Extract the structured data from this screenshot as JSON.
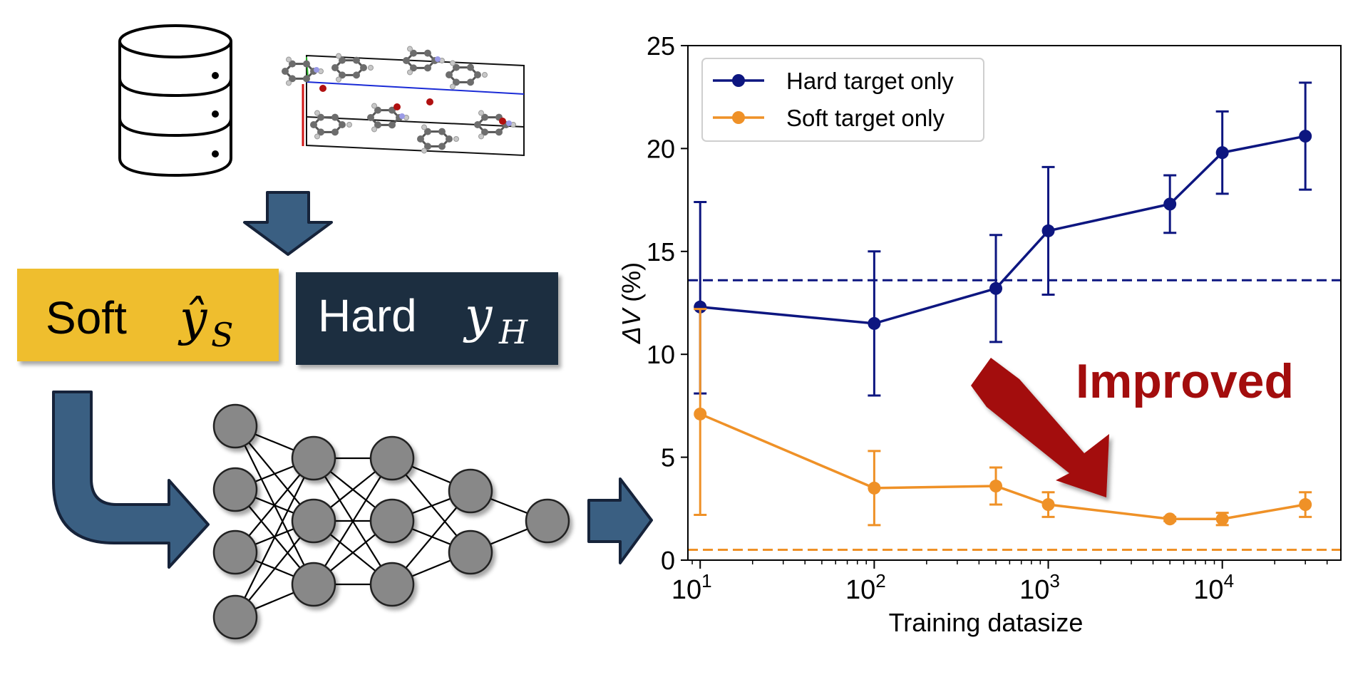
{
  "diagram": {
    "soft_box": {
      "word": "Soft",
      "symbol": "ŷ",
      "subscript": "S",
      "color": "#efbe2f"
    },
    "hard_box": {
      "word": "Hard",
      "symbol": "y",
      "subscript": "H",
      "color": "#1f2d40"
    },
    "arrow_color": "#3a5f82",
    "node_color": "#888888",
    "layers": [
      4,
      3,
      3,
      2,
      1
    ]
  },
  "chart_data": {
    "type": "line",
    "xscale": "log",
    "xlabel": "Training datasize",
    "ylabel_symbol": "ΔV",
    "ylabel_unit": "(%)",
    "xlim": [
      8.5,
      48000
    ],
    "ylim": [
      0,
      25
    ],
    "xticks": [
      {
        "value": 10,
        "base": "10",
        "exp": "1"
      },
      {
        "value": 100,
        "base": "10",
        "exp": "2"
      },
      {
        "value": 1000,
        "base": "10",
        "exp": "3"
      },
      {
        "value": 10000,
        "base": "10",
        "exp": "4"
      }
    ],
    "yticks": [
      "0",
      "5",
      "10",
      "15",
      "20",
      "25"
    ],
    "series": [
      {
        "name": "Hard target only",
        "color": "#0d1680",
        "x": [
          10,
          100,
          500,
          1000,
          5000,
          10000,
          30000
        ],
        "y": [
          12.3,
          11.5,
          13.2,
          16.0,
          17.3,
          19.8,
          20.6
        ],
        "err_low": [
          4.2,
          3.5,
          2.6,
          3.1,
          1.4,
          2.0,
          2.6
        ],
        "err_high": [
          5.1,
          3.5,
          2.6,
          3.1,
          1.4,
          2.0,
          2.6
        ],
        "baseline": 13.6
      },
      {
        "name": "Soft target only",
        "color": "#ef9127",
        "x": [
          10,
          100,
          500,
          1000,
          5000,
          10000,
          30000
        ],
        "y": [
          7.1,
          3.5,
          3.6,
          2.7,
          2.0,
          2.0,
          2.7
        ],
        "err_low": [
          4.9,
          1.8,
          0.9,
          0.6,
          0.1,
          0.3,
          0.6
        ],
        "err_high": [
          5.1,
          1.8,
          0.9,
          0.6,
          0.1,
          0.3,
          0.6
        ],
        "baseline": 0.5
      }
    ],
    "legend_position": "top-left",
    "annotation": {
      "text": "Improved",
      "color": "#a30d0d"
    }
  }
}
